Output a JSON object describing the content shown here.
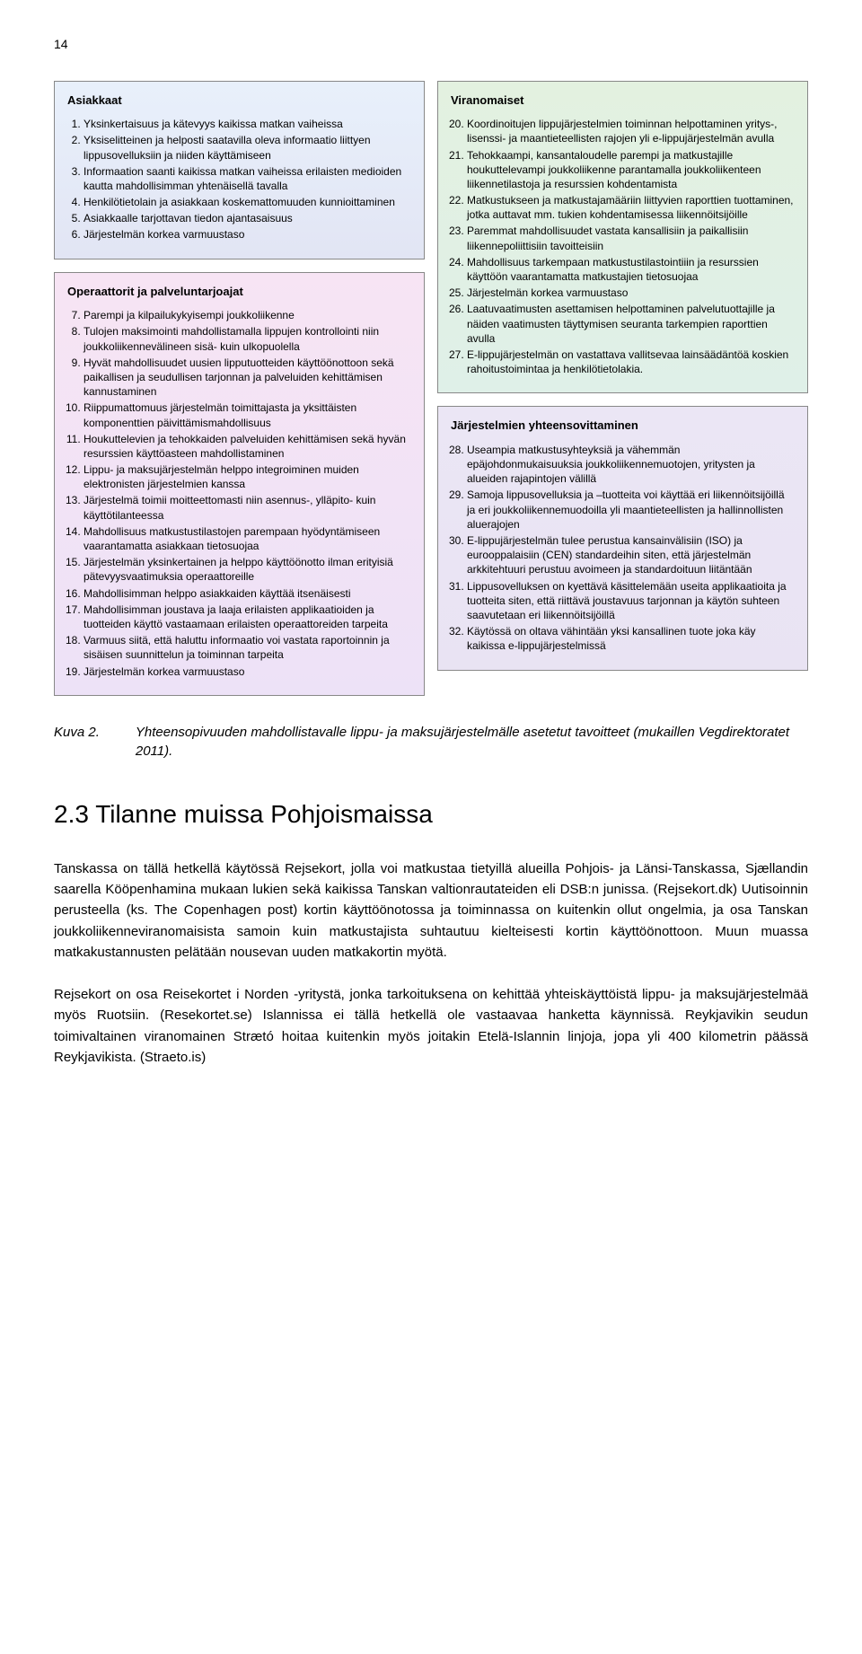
{
  "page_number": "14",
  "box_customers": {
    "title": "Asiakkaat",
    "items": [
      "Yksinkertaisuus ja kätevyys kaikissa matkan vaiheissa",
      "Yksiselitteinen ja helposti saatavilla oleva informaatio liittyen lippusovelluksiin ja niiden käyttämiseen",
      "Informaation saanti kaikissa matkan vaiheissa erilaisten medioiden kautta mahdollisimman yhtenäisellä tavalla",
      "Henkilötietolain ja asiakkaan koskemattomuuden kunnioittaminen",
      "Asiakkaalle tarjottavan tiedon ajantasaisuus",
      "Järjestelmän korkea varmuustaso"
    ]
  },
  "box_operators": {
    "title": "Operaattorit ja palveluntarjoajat",
    "start": 7,
    "items": [
      "Parempi ja kilpailukykyisempi joukkoliikenne",
      "Tulojen maksimointi mahdollistamalla lippujen kontrollointi niin joukkoliikennevälineen sisä- kuin ulkopuolella",
      "Hyvät mahdollisuudet uusien lipputuotteiden käyttöönottoon sekä paikallisen ja seudullisen tarjonnan ja palveluiden kehittämisen kannustaminen",
      "Riippumattomuus järjestelmän toimittajasta ja yksittäisten komponenttien päivittämismahdollisuus",
      "Houkuttelevien ja tehokkaiden palveluiden kehittämisen sekä hyvän resurssien käyttöasteen mahdollistaminen",
      "Lippu- ja maksujärjestelmän helppo integroiminen muiden elektronisten järjestelmien kanssa",
      "Järjestelmä toimii moitteettomasti niin asennus-, ylläpito- kuin käyttötilanteessa",
      "Mahdollisuus matkustustilastojen parempaan hyödyntämiseen vaarantamatta asiakkaan tietosuojaa",
      "Järjestelmän yksinkertainen ja helppo käyttöönotto ilman erityisiä pätevyysvaatimuksia operaattoreille",
      "Mahdollisimman helppo asiakkaiden käyttää itsenäisesti",
      "Mahdollisimman joustava ja laaja erilaisten applikaatioiden ja tuotteiden käyttö vastaamaan erilaisten operaattoreiden tarpeita",
      "Varmuus siitä, että haluttu informaatio voi vastata raportoinnin ja sisäisen suunnittelun ja toiminnan tarpeita",
      "Järjestelmän korkea varmuustaso"
    ]
  },
  "box_authorities": {
    "title": "Viranomaiset",
    "start": 20,
    "items": [
      "Koordinoitujen lippujärjestelmien toiminnan helpottaminen yritys-, lisenssi- ja maantieteellisten rajojen yli e-lippujärjestelmän avulla",
      "Tehokkaampi, kansantaloudelle parempi ja matkustajille houkuttelevampi joukkoliikenne parantamalla joukkoliikenteen liikennetilastoja ja resurssien kohdentamista",
      "Matkustukseen ja matkustajamääriin liittyvien raporttien tuottaminen, jotka auttavat mm. tukien kohdentamisessa liikennöitsijöille",
      "Paremmat mahdollisuudet vastata kansallisiin ja paikallisiin liikennepoliittisiin tavoitteisiin",
      "Mahdollisuus tarkempaan matkustustilastointiiin ja resurssien käyttöön vaarantamatta matkustajien tietosuojaa",
      "Järjestelmän korkea varmuustaso",
      "Laatuvaatimusten asettamisen helpottaminen palvelutuottajille ja näiden vaatimusten täyttymisen seuranta tarkempien raporttien avulla",
      "E-lippujärjestelmän on vastattava vallitsevaa lainsäädäntöä koskien rahoitustoimintaa ja henkilötietolakia."
    ]
  },
  "box_systems": {
    "title": "Järjestelmien yhteensovittaminen",
    "start": 28,
    "items": [
      "Useampia matkustusyhteyksiä ja vähemmän epäjohdonmukaisuuksia joukkoliikennemuotojen, yritysten ja alueiden rajapintojen välillä",
      "Samoja lippusovelluksia ja –tuotteita voi käyttää eri liikennöitsijöillä ja eri joukkoliikennemuodoilla yli maantieteellisten ja hallinnollisten aluerajojen",
      "E-lippujärjestelmän tulee perustua kansainvälisiin (ISO) ja eurooppalaisiin (CEN) standardeihin siten, että järjestelmän arkkitehtuuri perustuu avoimeen ja standardoituun liitäntään",
      "Lippusovelluksen on kyettävä käsittelemään useita applikaatioita ja tuotteita siten, että riittävä joustavuus tarjonnan ja käytön suhteen saavutetaan eri liikennöitsijöillä",
      "Käytössä on oltava vähintään yksi kansallinen tuote joka käy kaikissa e-lippujärjestelmissä"
    ]
  },
  "caption": {
    "label": "Kuva 2.",
    "text": "Yhteensopivuuden mahdollistavalle lippu- ja maksujärjestelmälle asetetut tavoitteet (mukaillen Vegdirektoratet 2011)."
  },
  "section": {
    "heading": "2.3  Tilanne muissa Pohjoismaissa",
    "para1": "Tanskassa on tällä hetkellä käytössä Rejsekort, jolla voi matkustaa tietyillä alueilla Pohjois- ja Länsi-Tanskassa, Sjællandin saarella Kööpenhamina mukaan lukien sekä kaikissa Tanskan valtionrautateiden eli DSB:n junissa. (Rejsekort.dk) Uutisoinnin perusteella (ks. The Copenhagen post) kortin käyttöönotossa ja toiminnassa on kuitenkin ollut ongelmia, ja osa Tanskan joukkoliikenneviranomaisista samoin kuin matkustajista suhtautuu kielteisesti kortin käyttöönottoon. Muun muassa matkakustannusten pelätään nousevan uuden matkakortin myötä.",
    "para2": "Rejsekort on osa Reisekortet i Norden -yritystä, jonka tarkoituksena on kehittää yhteiskäyttöistä lippu- ja maksujärjestelmää myös Ruotsiin. (Resekortet.se) Islannissa ei tällä hetkellä ole vastaavaa hanketta käynnissä. Reykjavikin seudun toimivaltainen viranomainen Strætó hoitaa kuitenkin myös joitakin Etelä-Islannin linjoja, jopa yli 400 kilometrin päässä Reykjavikista. (Straeto.is)"
  },
  "colors": {
    "blue_top": "#e8f0fb",
    "blue_bottom": "#e2e5f4",
    "pink_top": "#f7e4f4",
    "pink_bottom": "#ede2f7",
    "green_top": "#e3f1e0",
    "green_bottom": "#dff0e8",
    "purple_top": "#ebe6f5",
    "purple_bottom": "#e9e3f3",
    "border": "#888888",
    "text": "#000000",
    "bg": "#ffffff"
  }
}
